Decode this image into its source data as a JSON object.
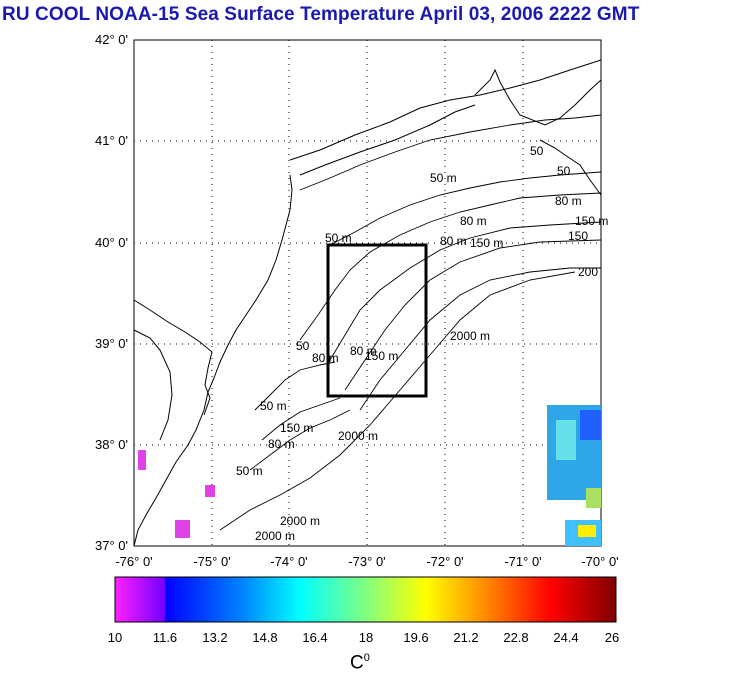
{
  "title": "RU COOL  NOAA-15 Sea Surface Temperature April 03, 2006 2222 GMT",
  "map": {
    "lon_ticks": [
      "-76° 0'",
      "-75° 0'",
      "-74° 0'",
      "-73° 0'",
      "-72° 0'",
      "-71° 0'",
      "-70° 0'"
    ],
    "lat_ticks": [
      "42° 0'",
      "41° 0'",
      "40° 0'",
      "39° 0'",
      "38° 0'",
      "37° 0'"
    ],
    "lon_range": [
      -76,
      -70
    ],
    "lat_range": [
      37,
      42
    ],
    "contour_labels": [
      "50 m",
      "50 m",
      "80 m",
      "80 m",
      "150 m",
      "50",
      "50",
      "80 m",
      "150",
      "200",
      "2000 m",
      "50",
      "80 m",
      "150 m",
      "80 m",
      "150 m",
      "2000 m",
      "2000 m",
      "50 m",
      "80 m",
      "150 m",
      "2000 m",
      "50 m"
    ],
    "box_lon": [
      -73.45,
      -72.3
    ],
    "box_lat": [
      38.5,
      40.0
    ]
  },
  "colorbar": {
    "ticks": [
      "10",
      "11.6",
      "13.2",
      "14.8",
      "16.4",
      "18",
      "19.6",
      "21.2",
      "22.8",
      "24.4",
      "26"
    ],
    "min": 10,
    "max": 26,
    "unit": "C",
    "unit_sup": "0"
  },
  "colors": {
    "title": "#1a1ab0",
    "frame": "#000000"
  }
}
